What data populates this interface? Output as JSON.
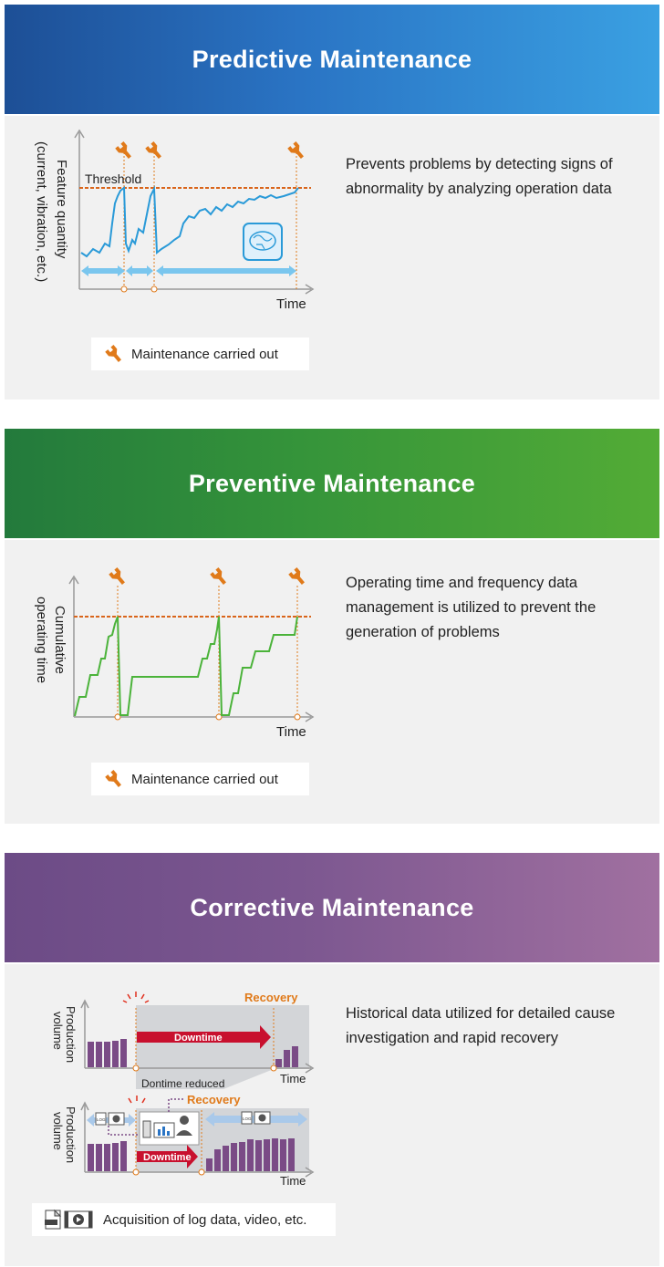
{
  "predictive": {
    "title": "Predictive Maintenance",
    "description": "Prevents problems by detecting signs of abnormality by analyzing operation data",
    "y_label_1": "Feature quantity",
    "y_label_2": "(current, vibration, etc.)",
    "threshold_label": "Threshold",
    "x_label": "Time",
    "legend": "Maintenance carried out"
  },
  "preventive": {
    "title": "Preventive Maintenance",
    "description": "Operating time and frequency data management is utilized to prevent the generation of problems",
    "y_label_1": "Cumulative",
    "y_label_2": "operating time",
    "x_label": "Time",
    "legend": "Maintenance carried out"
  },
  "corrective": {
    "title": "Corrective Maintenance",
    "description": "Historical data utilized for detailed cause investigation and rapid recovery",
    "y_label_1": "Production",
    "y_label_2": "volume",
    "recovery_label": "Recovery",
    "downtime_label": "Downtime",
    "reduced_label": "Dontime reduced",
    "x_label": "Time",
    "legend": "Acquisition of log data, video, etc.",
    "log_icon_label": "LOG"
  },
  "colors": {
    "predictive_header": "#2a74c4",
    "preventive_header": "#35943a",
    "corrective_header": "#7c5790",
    "wrench": "#e07a1a",
    "threshold": "#d9651b",
    "feature_line": "#2a9ad8",
    "cumulative_line": "#4bb33a",
    "downtime": "#c8102e",
    "bars": "#7a4b86"
  }
}
